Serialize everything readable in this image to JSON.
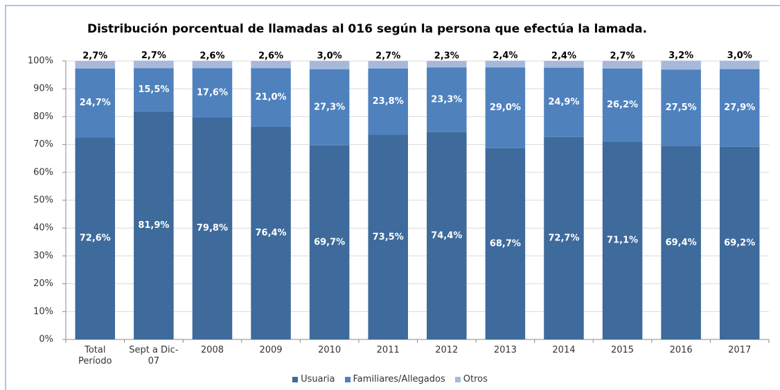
{
  "chart_data": {
    "type": "stacked_bar",
    "title": "Distribución porcentual de llamadas al 016 según la persona que efectúa la lamada.",
    "categories": [
      "Total Período",
      "Sept a Dic-07",
      "2008",
      "2009",
      "2010",
      "2011",
      "2012",
      "2013",
      "2014",
      "2015",
      "2016",
      "2017"
    ],
    "series": [
      {
        "name": "Usuaria",
        "color": "#3e6a9c",
        "values": [
          72.6,
          81.9,
          79.8,
          76.4,
          69.7,
          73.5,
          74.4,
          68.7,
          72.7,
          71.1,
          69.4,
          69.2
        ],
        "value_labels": [
          "72,6%",
          "81,9%",
          "79,8%",
          "76,4%",
          "69,7%",
          "73,5%",
          "74,4%",
          "68,7%",
          "72,7%",
          "71,1%",
          "69,4%",
          "69,2%"
        ]
      },
      {
        "name": "Familiares/Allegados",
        "color": "#4f81bd",
        "values": [
          24.7,
          15.5,
          17.6,
          21.0,
          27.3,
          23.8,
          23.3,
          29.0,
          24.9,
          26.2,
          27.5,
          27.9
        ],
        "value_labels": [
          "24,7%",
          "15,5%",
          "17,6%",
          "21,0%",
          "27,3%",
          "23,8%",
          "23,3%",
          "29,0%",
          "24,9%",
          "26,2%",
          "27,5%",
          "27,9%"
        ]
      },
      {
        "name": "Otros",
        "color": "#a7b9da",
        "values": [
          2.7,
          2.7,
          2.6,
          2.6,
          3.0,
          2.7,
          2.3,
          2.4,
          2.4,
          2.7,
          3.2,
          3.0
        ],
        "value_labels": [
          "2,7%",
          "2,7%",
          "2,6%",
          "2,6%",
          "3,0%",
          "2,7%",
          "2,3%",
          "2,4%",
          "2,4%",
          "2,7%",
          "3,2%",
          "3,0%"
        ]
      }
    ],
    "ylim": [
      0,
      100
    ],
    "yticks": [
      {
        "value": 0,
        "label": "0%"
      },
      {
        "value": 10,
        "label": "10%"
      },
      {
        "value": 20,
        "label": "20%"
      },
      {
        "value": 30,
        "label": "30%"
      },
      {
        "value": 40,
        "label": "40%"
      },
      {
        "value": 50,
        "label": "50%"
      },
      {
        "value": 60,
        "label": "60%"
      },
      {
        "value": 70,
        "label": "70%"
      },
      {
        "value": 80,
        "label": "80%"
      },
      {
        "value": 90,
        "label": "90%"
      },
      {
        "value": 100,
        "label": "100%"
      }
    ],
    "grid": true,
    "legend": "bottom"
  }
}
